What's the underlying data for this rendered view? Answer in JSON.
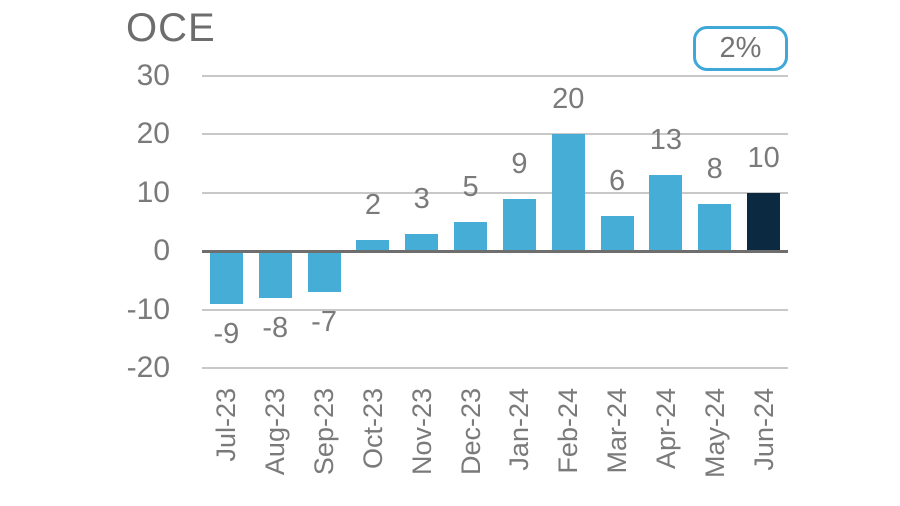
{
  "title": "OCE",
  "badge": {
    "label": "2%",
    "border_color": "#3fa8d7",
    "text_color": "#757575"
  },
  "chart_data": {
    "type": "bar",
    "title": "OCE",
    "categories": [
      "Jul-23",
      "Aug-23",
      "Sep-23",
      "Oct-23",
      "Nov-23",
      "Dec-23",
      "Jan-24",
      "Feb-24",
      "Mar-24",
      "Apr-24",
      "May-24",
      "Jun-24"
    ],
    "values": [
      -9,
      -8,
      -7,
      2,
      3,
      5,
      9,
      20,
      6,
      13,
      8,
      10
    ],
    "data_labels": [
      "-9",
      "-8",
      "-7",
      "2",
      "3",
      "5",
      "9",
      "20",
      "6",
      "13",
      "8",
      "10"
    ],
    "xlabel": "",
    "ylabel": "",
    "ylim": [
      -20,
      30
    ],
    "yticks": [
      30,
      20,
      10,
      0,
      -10,
      -20
    ],
    "grid": true,
    "legend": "none",
    "bar_color": "#45add6",
    "highlight_color": "#0b2940",
    "highlight_index": 11,
    "text_color": "#7a7a7a",
    "gridline_color": "#c8c8c8",
    "zero_line_color": "#6e6e6e"
  }
}
